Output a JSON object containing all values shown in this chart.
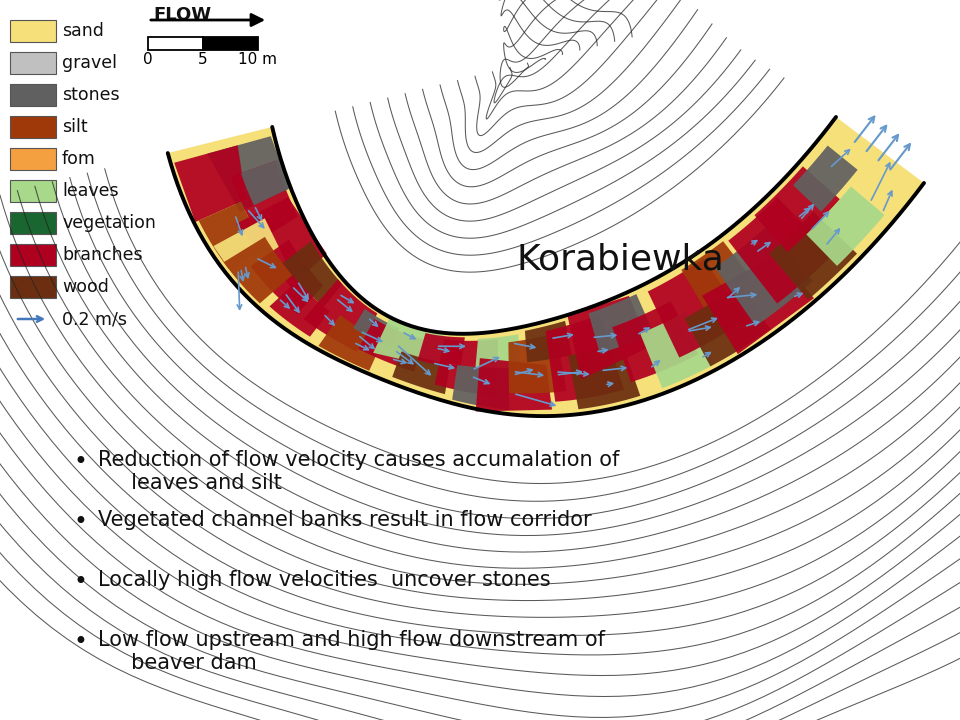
{
  "title": "Korabiewka",
  "title_fontsize": 26,
  "bg_color": "#ffffff",
  "legend_items": [
    {
      "label": "sand",
      "color": "#F5E07A"
    },
    {
      "label": "gravel",
      "color": "#C0C0C0"
    },
    {
      "label": "stones",
      "color": "#606060"
    },
    {
      "label": "silt",
      "color": "#A0390A"
    },
    {
      "label": "fom",
      "color": "#F5A040"
    },
    {
      "label": "leaves",
      "color": "#A8D88A"
    },
    {
      "label": "vegetation",
      "color": "#1A6630"
    },
    {
      "label": "branches",
      "color": "#B00020"
    },
    {
      "label": "wood",
      "color": "#6B2E10"
    }
  ],
  "velocity_label": "0.2 m/s",
  "bullet_points": [
    "Reduction of flow velocity causes accumalation of\n     leaves and silt",
    "Vegetated channel banks result in flow corridor",
    "Locally high flow velocities  uncover stones",
    "Low flow upstream and high flow downstream of\n     beaver dam"
  ],
  "contour_color": "#333333",
  "arrow_color": "#6699CC"
}
